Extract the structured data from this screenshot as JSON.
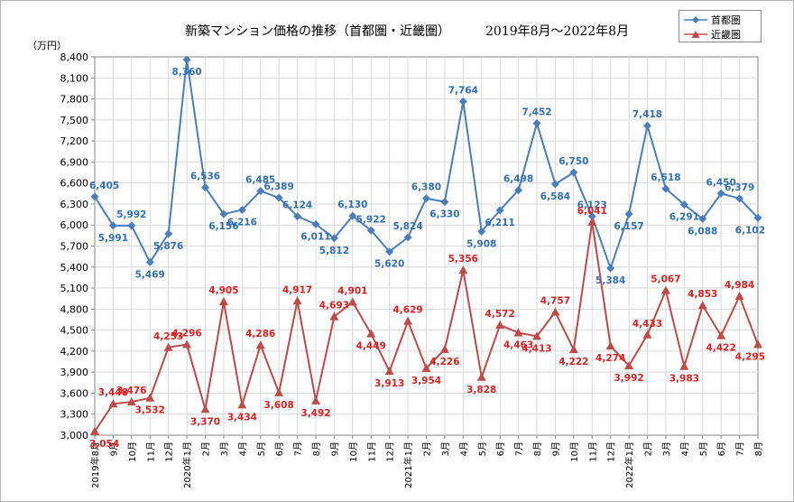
{
  "chart_data": {
    "type": "line",
    "title": "新築マンション価格の推移（首都圏・近畿圏）",
    "subtitle": "2019年8月～2022年8月",
    "ylabel_unit": "（万円）",
    "ylim": [
      3000,
      8400
    ],
    "yticks": [
      "3,000",
      "3,300",
      "3,600",
      "3,900",
      "4,200",
      "4,500",
      "4,800",
      "5,100",
      "5,400",
      "5,700",
      "6,000",
      "6,300",
      "6,600",
      "6,900",
      "7,200",
      "7,500",
      "7,800",
      "8,100",
      "8,400"
    ],
    "categories": [
      "2019年8月",
      "9月",
      "10月",
      "11月",
      "12月",
      "2020年1月",
      "2月",
      "3月",
      "4月",
      "5月",
      "6月",
      "7月",
      "8月",
      "9月",
      "10月",
      "11月",
      "12月",
      "2021年1月",
      "2月",
      "3月",
      "4月",
      "5月",
      "6月",
      "7月",
      "8月",
      "9月",
      "10月",
      "11月",
      "12月",
      "2022年1月",
      "2月",
      "3月",
      "4月",
      "5月",
      "6月",
      "7月",
      "8月"
    ],
    "grid": true,
    "legend_position": "top-right",
    "series": [
      {
        "name": "首都圏",
        "color": "#4a7ebb",
        "marker": "diamond",
        "values": [
          6405,
          5991,
          5992,
          5469,
          5876,
          8360,
          6536,
          6156,
          6216,
          6485,
          6389,
          6124,
          6011,
          5812,
          6130,
          5922,
          5620,
          5824,
          6380,
          6330,
          7764,
          5908,
          6211,
          6498,
          7452,
          6584,
          6750,
          6123,
          5384,
          6157,
          7418,
          6518,
          6291,
          6088,
          6450,
          6379,
          6102
        ],
        "labels": [
          "6,405",
          "5,991",
          "5,992",
          "5,469",
          "5,876",
          "8,360",
          "6,536",
          "6,156",
          "6,216",
          "6,485",
          "6,389",
          "6,124",
          "6,011",
          "5,812",
          "6,130",
          "5,922",
          "5,620",
          "5,824",
          "6,380",
          "6,330",
          "7,764",
          "5,908",
          "6,211",
          "6,498",
          "7,452",
          "6,584",
          "6,750",
          "6,123",
          "5,384",
          "6,157",
          "7,418",
          "6,518",
          "6,291",
          "6,088",
          "6,450",
          "6,379",
          "6,102"
        ]
      },
      {
        "name": "近畿圏",
        "color": "#be4b48",
        "marker": "triangle",
        "values": [
          3054,
          3448,
          3476,
          3532,
          4253,
          4296,
          3370,
          4905,
          3434,
          4286,
          3608,
          4917,
          3492,
          4693,
          4901,
          4449,
          3913,
          4629,
          3954,
          4226,
          5356,
          3828,
          4572,
          4463,
          4413,
          4757,
          4222,
          6041,
          4274,
          3992,
          4433,
          5067,
          3983,
          4853,
          4422,
          4984,
          4295
        ],
        "labels": [
          "3,054",
          "3,448",
          "3,476",
          "3,532",
          "4,253",
          "4,296",
          "3,370",
          "4,905",
          "3,434",
          "4,286",
          "3,608",
          "4,917",
          "3,492",
          "4,693",
          "4,901",
          "4,449",
          "3,913",
          "4,629",
          "3,954",
          "4,226",
          "5,356",
          "3,828",
          "4,572",
          "4,463",
          "4,413",
          "4,757",
          "4,222",
          "6,041",
          "4,274",
          "3,992",
          "4,433",
          "5,067",
          "3,983",
          "4,853",
          "4,422",
          "4,984",
          "4,295"
        ]
      }
    ]
  }
}
